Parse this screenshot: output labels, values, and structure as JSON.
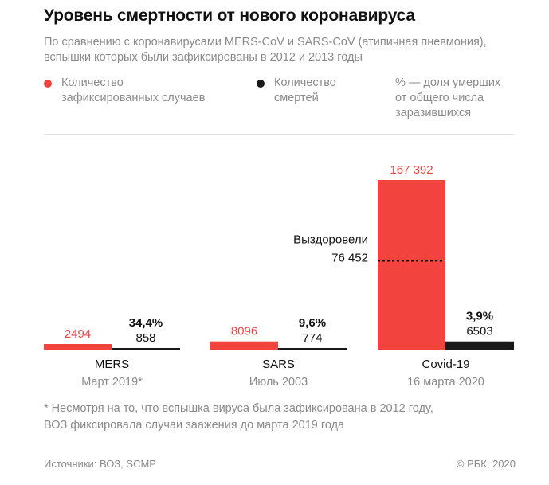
{
  "title": "Уровень смертности от нового коронавируса",
  "subtitle": "По сравнению с коронавирусами MERS-CoV и SARS-CoV (атипичная пневмония), вспышки которых были зафиксированы в 2012 и 2013 годы",
  "legend": {
    "cases_line1": "Количество",
    "cases_line2": "зафиксированных случаев",
    "deaths_line1": "Количество",
    "deaths_line2": "смертей",
    "pct_line1": "% — доля умерших",
    "pct_line2": "от общего числа",
    "pct_line3": "заразившихся"
  },
  "colors": {
    "cases": "#f2433f",
    "deaths": "#1a1a1a",
    "muted": "#8a8a8a"
  },
  "chart_data": {
    "type": "bar",
    "categories": [
      "MERS",
      "SARS",
      "Covid-19"
    ],
    "dates": [
      "Март 2019*",
      "Июль 2003",
      "16 марта 2020"
    ],
    "series": [
      {
        "name": "Количество зафиксированных случаев",
        "values": [
          2494,
          8096,
          167392
        ],
        "labels": [
          "2494",
          "8096",
          "167 392"
        ]
      },
      {
        "name": "Количество смертей",
        "values": [
          858,
          774,
          6503
        ],
        "labels": [
          "858",
          "774",
          "6503"
        ]
      }
    ],
    "death_rate_labels": [
      "34,4%",
      "9,6%",
      "3,9%"
    ],
    "annotation": {
      "category": "Covid-19",
      "label_line1": "Выздоровели",
      "label_line2": "76 452",
      "value": 76452
    },
    "ylim": [
      0,
      167392
    ]
  },
  "footnote_line1": "* Несмотря на то, что вспышка вируса была зафиксирована в 2012 году,",
  "footnote_line2": "ВОЗ фиксировала случаи заажения до марта 2019 года",
  "sources": "Источники: ВОЗ, SCMP",
  "copyright": "© РБК, 2020"
}
